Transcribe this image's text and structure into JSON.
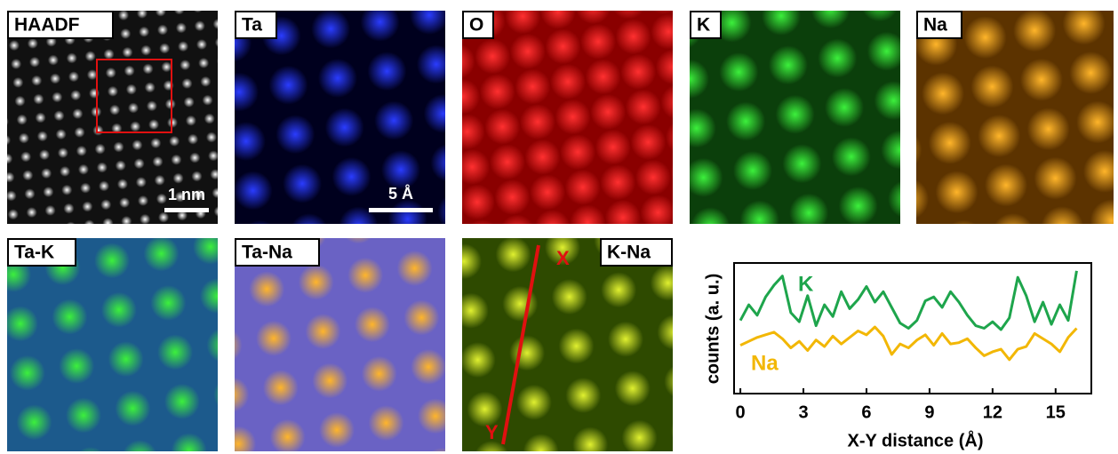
{
  "panels": [
    {
      "label": "HAADF"
    },
    {
      "label": "Ta"
    },
    {
      "label": "O"
    },
    {
      "label": "K"
    },
    {
      "label": "Na"
    },
    {
      "label": "Ta-K"
    },
    {
      "label": "Ta-Na"
    },
    {
      "label": "K-Na"
    }
  ],
  "scale_bars": {
    "haadf": "1 nm",
    "ta": "5 Å"
  },
  "line_markers": {
    "start": "X",
    "end": "Y"
  },
  "chart_data": {
    "type": "line",
    "xlabel": "X-Y distance (Å)",
    "ylabel": "counts (a. u.)",
    "x": [
      0,
      0.4,
      0.8,
      1.2,
      1.6,
      2.0,
      2.4,
      2.8,
      3.2,
      3.6,
      4.0,
      4.4,
      4.8,
      5.2,
      5.6,
      6.0,
      6.4,
      6.8,
      7.2,
      7.6,
      8.0,
      8.4,
      8.8,
      9.2,
      9.6,
      10.0,
      10.4,
      10.8,
      11.2,
      11.6,
      12.0,
      12.4,
      12.8,
      13.2,
      13.6,
      14.0,
      14.4,
      14.8,
      15.2,
      15.6,
      16.0
    ],
    "xlim": [
      -0.3,
      16.7
    ],
    "xticks": [
      0,
      3,
      6,
      9,
      12,
      15
    ],
    "ylim": [
      0,
      10
    ],
    "series": [
      {
        "name": "K",
        "color": "#1ea54c",
        "values": [
          5.6,
          6.8,
          6.0,
          7.4,
          8.3,
          9.0,
          6.2,
          5.5,
          7.5,
          5.2,
          6.8,
          5.9,
          7.8,
          6.5,
          7.2,
          8.2,
          7.0,
          7.8,
          6.6,
          5.4,
          5.0,
          5.6,
          7.1,
          7.4,
          6.6,
          7.8,
          7.0,
          6.0,
          5.2,
          5.0,
          5.5,
          4.9,
          5.8,
          8.9,
          7.5,
          5.5,
          7.0,
          5.3,
          6.8,
          5.6,
          9.4
        ]
      },
      {
        "name": "Na",
        "color": "#f2b705",
        "values": [
          3.7,
          4.0,
          4.3,
          4.5,
          4.7,
          4.2,
          3.5,
          4.0,
          3.3,
          4.1,
          3.6,
          4.4,
          3.8,
          4.3,
          4.8,
          4.5,
          5.1,
          4.4,
          3.0,
          3.8,
          3.5,
          4.1,
          4.5,
          3.7,
          4.6,
          3.8,
          3.9,
          4.2,
          3.5,
          2.9,
          3.2,
          3.4,
          2.6,
          3.4,
          3.6,
          4.6,
          4.2,
          3.8,
          3.2,
          4.3,
          5.0
        ]
      }
    ]
  }
}
